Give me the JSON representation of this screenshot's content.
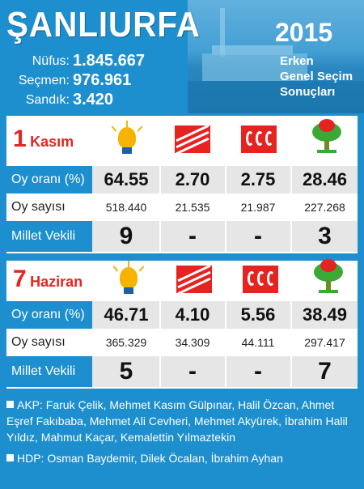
{
  "header": {
    "city": "ŞANLIURFA",
    "year": "2015",
    "subtitle_lines": [
      "Erken",
      "Genel Seçim",
      "Sonuçları"
    ],
    "stats": [
      {
        "label": "Nüfus:",
        "value": "1.845.667"
      },
      {
        "label": "Seçmen:",
        "value": "976.961"
      },
      {
        "label": "Sandık:",
        "value": "3.420"
      }
    ]
  },
  "parties": [
    {
      "icon": "akp-bulb-icon"
    },
    {
      "icon": "chp-arrows-icon"
    },
    {
      "icon": "mhp-crescents-icon"
    },
    {
      "icon": "hdp-tree-icon"
    }
  ],
  "row_labels": {
    "share": "Oy oranı (%)",
    "votes": "Oy sayısı",
    "mps": "Millet Vekili"
  },
  "kasim": {
    "date_num": "1",
    "date_month": "Kasım",
    "share": [
      "64.55",
      "2.70",
      "2.75",
      "28.46"
    ],
    "votes": [
      "518.440",
      "21.535",
      "21.987",
      "227.268"
    ],
    "mps": [
      "9",
      "-",
      "-",
      "3"
    ]
  },
  "haziran": {
    "date_num": "7",
    "date_month": "Haziran",
    "share": [
      "46.71",
      "4.10",
      "5.56",
      "38.49"
    ],
    "votes": [
      "365.329",
      "34.309",
      "44.111",
      "297.417"
    ],
    "mps": [
      "5",
      "-",
      "-",
      "7"
    ]
  },
  "footer": {
    "akp": "AKP: Faruk Çelik, Mehmet Kasım Gülpınar, Halil Özcan, Ahmet Eşref Fakıbaba, Mehmet Ali Cevheri, Mehmet Akyürek, İbrahim Halil Yıldız, Mahmut Kaçar, Kemalettin Yılmaztekin",
    "hdp": "HDP: Osman Baydemir, Dilek Öcalan, İbrahim Ayhan"
  },
  "colors": {
    "brand_blue": "#1d8fce",
    "accent_red": "#e52421",
    "akp_yellow": "#f6b400",
    "hdp_green": "#3ba935"
  }
}
